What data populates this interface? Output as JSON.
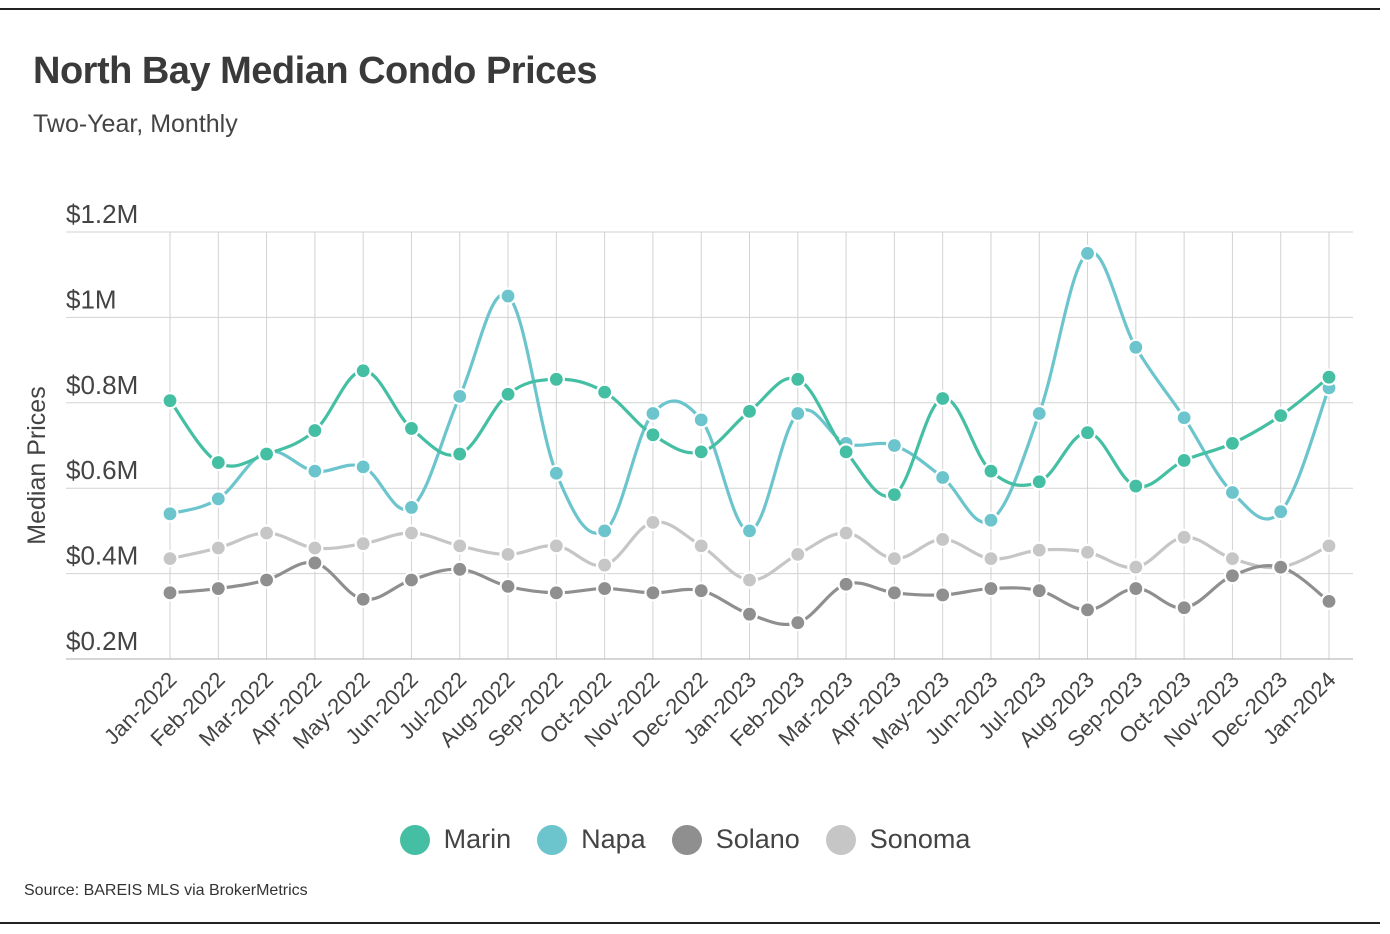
{
  "header": {
    "title": "North Bay Median Condo Prices",
    "subtitle": "Two-Year, Monthly"
  },
  "footer": {
    "source": "Source:  BAREIS MLS via BrokerMetrics"
  },
  "chart_data": {
    "type": "line",
    "title": "North Bay Median Condo Prices",
    "subtitle": "Two-Year, Monthly",
    "xlabel": "",
    "ylabel": "Median Prices",
    "ylim": [
      200000,
      1200000
    ],
    "yticks": [
      {
        "value": 200000,
        "label": "$0.2M"
      },
      {
        "value": 400000,
        "label": "$0.4M"
      },
      {
        "value": 600000,
        "label": "$0.6M"
      },
      {
        "value": 800000,
        "label": "$0.8M"
      },
      {
        "value": 1000000,
        "label": "$1M"
      },
      {
        "value": 1200000,
        "label": "$1.2M"
      }
    ],
    "grid": true,
    "legend_position": "bottom",
    "categories": [
      "Jan-2022",
      "Feb-2022",
      "Mar-2022",
      "Apr-2022",
      "May-2022",
      "Jun-2022",
      "Jul-2022",
      "Aug-2022",
      "Sep-2022",
      "Oct-2022",
      "Nov-2022",
      "Dec-2022",
      "Jan-2023",
      "Feb-2023",
      "Mar-2023",
      "Apr-2023",
      "May-2023",
      "Jun-2023",
      "Jul-2023",
      "Aug-2023",
      "Sep-2023",
      "Oct-2023",
      "Nov-2023",
      "Dec-2023",
      "Jan-2024"
    ],
    "series": [
      {
        "name": "Marin",
        "color": "#45bfa3",
        "values": [
          805000,
          660000,
          680000,
          735000,
          875000,
          740000,
          680000,
          820000,
          855000,
          825000,
          725000,
          685000,
          780000,
          855000,
          685000,
          585000,
          810000,
          640000,
          615000,
          730000,
          605000,
          665000,
          705000,
          770000,
          860000
        ]
      },
      {
        "name": "Napa",
        "color": "#6cc5cd",
        "values": [
          540000,
          575000,
          685000,
          640000,
          650000,
          555000,
          815000,
          1050000,
          635000,
          500000,
          775000,
          760000,
          500000,
          775000,
          705000,
          700000,
          625000,
          525000,
          775000,
          1150000,
          930000,
          765000,
          590000,
          545000,
          835000
        ]
      },
      {
        "name": "Solano",
        "color": "#8f8f8f",
        "values": [
          355000,
          365000,
          385000,
          425000,
          340000,
          385000,
          410000,
          370000,
          355000,
          365000,
          355000,
          360000,
          305000,
          285000,
          375000,
          355000,
          350000,
          365000,
          360000,
          315000,
          365000,
          320000,
          395000,
          415000,
          335000
        ]
      },
      {
        "name": "Sonoma",
        "color": "#c6c6c6",
        "values": [
          435000,
          460000,
          495000,
          460000,
          470000,
          495000,
          465000,
          445000,
          465000,
          420000,
          520000,
          465000,
          385000,
          445000,
          495000,
          435000,
          480000,
          435000,
          455000,
          450000,
          415000,
          485000,
          435000,
          415000,
          465000
        ]
      }
    ]
  }
}
